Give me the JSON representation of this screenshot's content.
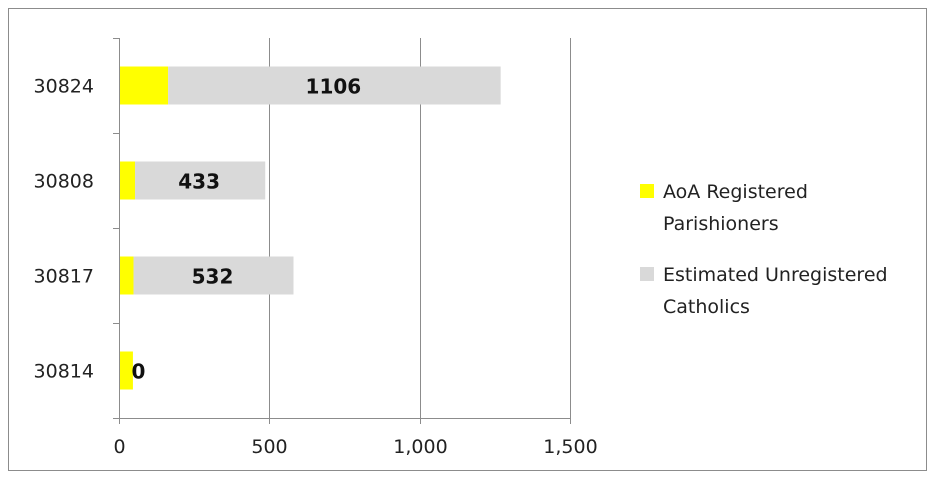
{
  "chart_data": {
    "type": "bar",
    "orientation": "horizontal",
    "stacked": true,
    "categories": [
      "30814",
      "30817",
      "30808",
      "30824"
    ],
    "series": [
      {
        "name": "AoA Registered Parishioners",
        "color": "#FFFF00",
        "values": [
          43,
          45,
          50,
          160
        ]
      },
      {
        "name": "Estimated Unregistered Catholics",
        "color": "#D9D9D9",
        "values": [
          0,
          532,
          433,
          1106
        ]
      }
    ],
    "data_labels": {
      "series": "Estimated Unregistered Catholics",
      "values": [
        "0",
        "532",
        "433",
        "1106"
      ]
    },
    "x_ticks": [
      "0",
      "500",
      "1,000",
      "1,500"
    ],
    "xlim": [
      0,
      1500
    ],
    "grid": "vertical",
    "legend_position": "right",
    "title": "",
    "xlabel": "",
    "ylabel": ""
  }
}
